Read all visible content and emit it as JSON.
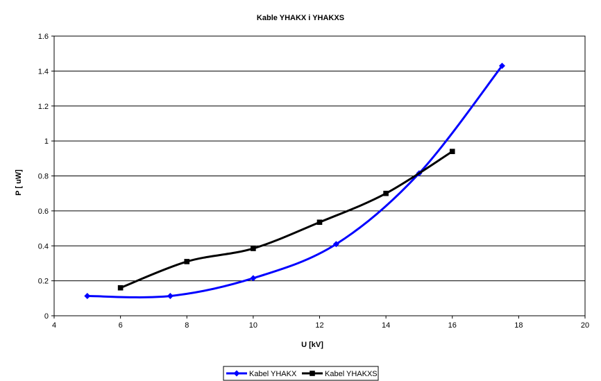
{
  "chart_data": {
    "type": "line",
    "title": "Kable YHAKX i YHAKXS",
    "xlabel": "U  [kV]",
    "ylabel": "P  [ uW]",
    "xlim": [
      4,
      20
    ],
    "ylim": [
      0,
      1.6
    ],
    "xticks": [
      4,
      6,
      8,
      10,
      12,
      14,
      16,
      18,
      20
    ],
    "yticks": [
      0,
      0.2,
      0.4,
      0.6,
      0.8,
      1,
      1.2,
      1.4,
      1.6
    ],
    "ytick_labels": [
      "0",
      "0.2",
      "0.4",
      "0.6",
      "0.8",
      "1",
      "1.2",
      "1.4",
      "1.6"
    ],
    "grid": "horizontal",
    "legend_position": "bottom",
    "series": [
      {
        "name": "Kabel YHAKX",
        "color": "#0000ff",
        "marker": "diamond",
        "x": [
          5,
          7.5,
          10,
          12.5,
          15,
          17.5
        ],
        "y": [
          0.113,
          0.113,
          0.215,
          0.41,
          0.815,
          1.43
        ]
      },
      {
        "name": "Kabel YHAKXS",
        "color": "#000000",
        "marker": "square",
        "x": [
          6,
          8,
          10,
          12,
          14,
          16
        ],
        "y": [
          0.16,
          0.31,
          0.385,
          0.535,
          0.7,
          0.94
        ]
      }
    ]
  }
}
